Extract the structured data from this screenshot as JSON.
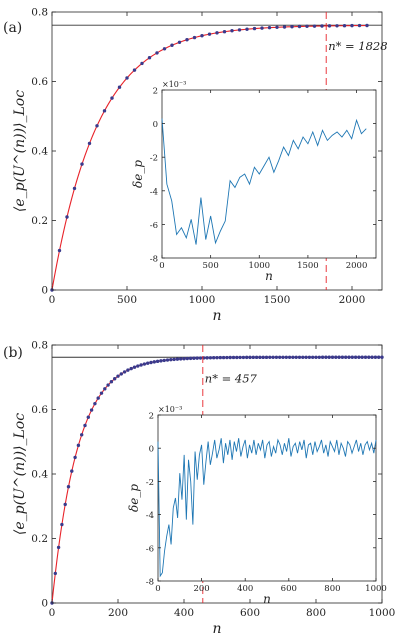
{
  "chart_data": [
    {
      "panel_label": "(a)",
      "type": "line",
      "xlabel": "n",
      "ylabel": "⟨e_p(U^(n))⟩_Loc",
      "xlim": [
        0,
        2200
      ],
      "ylim": [
        0,
        0.8
      ],
      "xticks": [
        "0",
        "500",
        "1000",
        "1500",
        "2000"
      ],
      "yticks": [
        "0",
        "0.2",
        "0.4",
        "0.6",
        "0.8"
      ],
      "asymptote": 0.762,
      "marker": {
        "n_star": 1828,
        "label": "n* = 1828"
      },
      "fit_curve": {
        "color": "#e8232a",
        "a": 0.762,
        "tau": 310
      },
      "points": {
        "color": "#3a3a8c",
        "x_start": 0,
        "x_step": 50,
        "count": 43
      },
      "inset": {
        "type": "line",
        "xlabel": "n",
        "ylabel": "δe_p",
        "exponent": "×10⁻³",
        "xlim": [
          0,
          2200
        ],
        "ylim": [
          -8,
          2
        ],
        "xticks": [
          "0",
          "500",
          "1000",
          "1500",
          "2000"
        ],
        "yticks": [
          "-8",
          "-6",
          "-4",
          "-2",
          "0",
          "2"
        ],
        "color": "#1f77b4",
        "x": [
          0,
          50,
          100,
          150,
          200,
          250,
          300,
          350,
          400,
          450,
          500,
          550,
          600,
          650,
          700,
          750,
          800,
          850,
          900,
          950,
          1000,
          1050,
          1100,
          1150,
          1200,
          1250,
          1300,
          1350,
          1400,
          1450,
          1500,
          1550,
          1600,
          1650,
          1700,
          1750,
          1800,
          1850,
          1900,
          1950,
          2000,
          2050,
          2100
        ],
        "values": [
          0.3,
          -3.6,
          -4.6,
          -6.6,
          -6.2,
          -6.8,
          -5.7,
          -7.2,
          -4.4,
          -6.9,
          -5.5,
          -7.1,
          -6.4,
          -5.8,
          -3.4,
          -3.8,
          -3.2,
          -3.0,
          -3.6,
          -2.6,
          -3.0,
          -2.5,
          -2.0,
          -2.9,
          -2.2,
          -1.4,
          -1.9,
          -1.0,
          -1.5,
          -0.8,
          -1.2,
          -0.5,
          -1.3,
          -0.4,
          -1.0,
          -0.7,
          -0.5,
          -0.8,
          -0.4,
          -0.9,
          0.2,
          -0.6,
          -0.3
        ]
      }
    },
    {
      "panel_label": "(b)",
      "type": "line",
      "xlabel": "n",
      "ylabel": "⟨e_p(U^(n))⟩_Loc",
      "xlim": [
        0,
        1000
      ],
      "ylim": [
        0,
        0.8
      ],
      "xticks": [
        "0",
        "200",
        "400",
        "600",
        "800",
        "1000"
      ],
      "yticks": [
        "0",
        "0.2",
        "0.4",
        "0.6",
        "0.8"
      ],
      "asymptote": 0.762,
      "marker": {
        "n_star": 457,
        "label": "n* = 457"
      },
      "fit_curve": {
        "color": "#e8232a",
        "a": 0.762,
        "tau": 78
      },
      "points": {
        "color": "#3a3a8c",
        "x_start": 0,
        "x_step": 10,
        "count": 101
      },
      "inset": {
        "type": "line",
        "xlabel": "n",
        "ylabel": "δe_p",
        "exponent": "×10⁻³",
        "xlim": [
          0,
          1000
        ],
        "ylim": [
          -8,
          2
        ],
        "xticks": [
          "0",
          "200",
          "400",
          "600",
          "800",
          "1000"
        ],
        "yticks": [
          "-8",
          "-6",
          "-4",
          "-2",
          "0",
          "2"
        ],
        "color": "#1f77b4",
        "x": [
          0,
          10,
          20,
          30,
          40,
          50,
          60,
          70,
          80,
          90,
          100,
          110,
          120,
          130,
          140,
          150,
          160,
          170,
          180,
          190,
          200,
          210,
          220,
          230,
          240,
          250,
          260,
          270,
          280,
          290,
          300,
          310,
          320,
          330,
          340,
          350,
          360,
          370,
          380,
          390,
          400,
          410,
          420,
          430,
          440,
          450,
          460,
          470,
          480,
          490,
          500,
          510,
          520,
          530,
          540,
          550,
          560,
          570,
          580,
          590,
          600,
          610,
          620,
          630,
          640,
          650,
          660,
          670,
          680,
          690,
          700,
          710,
          720,
          730,
          740,
          750,
          760,
          770,
          780,
          790,
          800,
          810,
          820,
          830,
          840,
          850,
          860,
          870,
          880,
          890,
          900,
          910,
          920,
          930,
          940,
          950,
          960,
          970,
          980,
          990,
          1000
        ],
        "values": [
          0.4,
          -7.7,
          -7.5,
          -6.2,
          -5.3,
          -4.6,
          -5.8,
          -3.6,
          -3.0,
          -4.2,
          -1.5,
          -3.1,
          -0.4,
          -4.3,
          -0.7,
          -2.0,
          -4.6,
          -0.2,
          -1.9,
          -0.4,
          0.2,
          -2.2,
          -0.8,
          0.4,
          -1.0,
          -0.3,
          0.5,
          -0.6,
          -0.1,
          0.6,
          -0.9,
          0.3,
          -0.4,
          0.5,
          -0.7,
          0.4,
          -0.2,
          0.6,
          -0.5,
          0.1,
          0.5,
          -0.6,
          0.2,
          -0.3,
          0.5,
          -0.4,
          0.3,
          -0.1,
          0.5,
          -0.6,
          0.2,
          0.4,
          -0.5,
          0.1,
          -0.3,
          0.5,
          0.2,
          -0.4,
          0.3,
          -0.2,
          0.6,
          -0.5,
          0.1,
          0.3,
          -0.3,
          0.4,
          -0.1,
          0.5,
          -0.6,
          0.2,
          0.3,
          -0.4,
          0.4,
          -0.2,
          0.1,
          0.5,
          -0.3,
          0.2,
          -0.5,
          0.4,
          0.1,
          -0.2,
          0.5,
          -0.4,
          0.3,
          0.0,
          -0.5,
          0.4,
          0.2,
          -0.3,
          0.1,
          0.5,
          -0.2,
          0.3,
          -0.4,
          0.2,
          0.4,
          -0.1,
          0.3,
          -0.3,
          0.5
        ]
      }
    }
  ]
}
